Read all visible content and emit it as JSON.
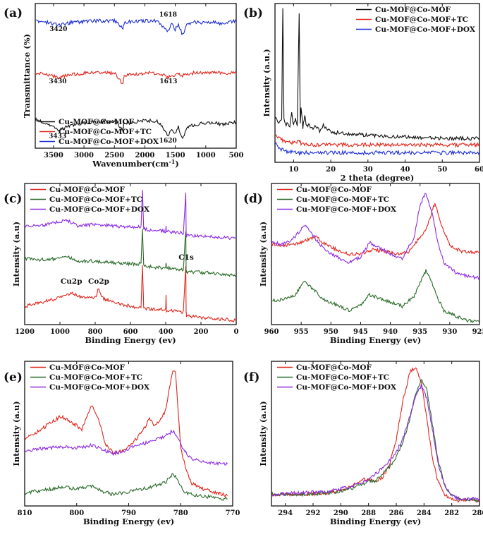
{
  "chart_data": [
    {
      "panel": "(a)",
      "type": "line",
      "xlabel": "Wavenumber(cm-1)",
      "ylabel": "Transmittance (%)",
      "xlim": [
        3800,
        500
      ],
      "xticks": [
        3500,
        3000,
        2500,
        2000,
        1500,
        1000,
        500
      ],
      "legend_loc": "lower-left",
      "series": [
        {
          "name": "Cu-MOF@Co-MOF",
          "color": "#111111",
          "x": [
            3800,
            3600,
            3433,
            3200,
            2900,
            2500,
            2360,
            2340,
            2000,
            1800,
            1620,
            1560,
            1500,
            1450,
            1380,
            1300,
            1200,
            1100,
            1000,
            900,
            800,
            700,
            600,
            500
          ],
          "y": [
            0.2,
            0.17,
            0.12,
            0.16,
            0.18,
            0.19,
            0.13,
            0.17,
            0.19,
            0.19,
            0.09,
            0.14,
            0.1,
            0.15,
            0.06,
            0.14,
            0.16,
            0.17,
            0.17,
            0.18,
            0.17,
            0.16,
            0.18,
            0.18
          ]
        },
        {
          "name": "Cu-MOF@Co-MOF+TC",
          "color": "#e0251b",
          "x": [
            3800,
            3600,
            3430,
            3200,
            2900,
            2500,
            2360,
            2340,
            2000,
            1800,
            1613,
            1560,
            1500,
            1450,
            1380,
            1300,
            1200,
            1000,
            800,
            600,
            500
          ],
          "y": [
            0.52,
            0.51,
            0.49,
            0.51,
            0.52,
            0.52,
            0.44,
            0.5,
            0.52,
            0.52,
            0.49,
            0.51,
            0.5,
            0.51,
            0.5,
            0.51,
            0.52,
            0.52,
            0.52,
            0.52,
            0.52
          ]
        },
        {
          "name": "Cu-MOF@Co-MOF+DOX",
          "color": "#1f2fd6",
          "x": [
            3800,
            3600,
            3420,
            3200,
            2900,
            2500,
            2360,
            2340,
            2000,
            1800,
            1618,
            1560,
            1500,
            1450,
            1380,
            1300,
            1200,
            1000,
            800,
            700,
            600,
            500
          ],
          "y": [
            0.88,
            0.87,
            0.85,
            0.87,
            0.88,
            0.88,
            0.83,
            0.87,
            0.88,
            0.88,
            0.81,
            0.86,
            0.82,
            0.86,
            0.78,
            0.86,
            0.87,
            0.87,
            0.87,
            0.85,
            0.87,
            0.88
          ]
        }
      ],
      "annotations": [
        {
          "text": "3420",
          "x": 3420,
          "y": 0.81
        },
        {
          "text": "1618",
          "x": 1618,
          "y": 0.91
        },
        {
          "text": "3430",
          "x": 3430,
          "y": 0.45
        },
        {
          "text": "1613",
          "x": 1613,
          "y": 0.45
        },
        {
          "text": "3433",
          "x": 3433,
          "y": 0.07
        },
        {
          "text": "1620",
          "x": 1620,
          "y": 0.04
        }
      ]
    },
    {
      "panel": "(b)",
      "type": "line",
      "xlabel": "2 theta (degree)",
      "ylabel": "Intensity (a.u.)",
      "xlim": [
        5,
        60
      ],
      "xticks": [
        10,
        20,
        30,
        40,
        50,
        60
      ],
      "legend_loc": "top-right",
      "series": [
        {
          "name": "Cu-MOF@Co-MOF",
          "color": "#111111",
          "x": [
            5,
            6,
            6.8,
            7.1,
            7.4,
            8,
            9,
            9.5,
            10,
            10.5,
            11,
            11.5,
            11.8,
            12,
            12.5,
            13,
            13.5,
            14,
            15,
            16,
            17,
            18,
            20,
            25,
            30,
            40,
            50,
            60
          ],
          "y": [
            0.28,
            0.25,
            0.27,
            0.96,
            0.27,
            0.24,
            0.23,
            0.31,
            0.23,
            0.28,
            0.24,
            0.94,
            0.24,
            0.34,
            0.22,
            0.3,
            0.22,
            0.24,
            0.21,
            0.23,
            0.2,
            0.23,
            0.19,
            0.18,
            0.17,
            0.16,
            0.15,
            0.15
          ]
        },
        {
          "name": "Cu-MOF@Co-MOF+TC",
          "color": "#e0251b",
          "x": [
            5,
            6,
            8,
            10,
            11.5,
            12,
            15,
            20,
            30,
            40,
            50,
            60
          ],
          "y": [
            0.17,
            0.15,
            0.13,
            0.12,
            0.13,
            0.12,
            0.11,
            0.11,
            0.11,
            0.11,
            0.11,
            0.11
          ]
        },
        {
          "name": "Cu-MOF@Co-MOF+DOX",
          "color": "#1f2fd6",
          "x": [
            5,
            6,
            8,
            10,
            12,
            15,
            20,
            30,
            40,
            50,
            60
          ],
          "y": [
            0.12,
            0.09,
            0.07,
            0.06,
            0.06,
            0.06,
            0.06,
            0.06,
            0.06,
            0.06,
            0.06
          ]
        }
      ]
    },
    {
      "panel": "(c)",
      "type": "line",
      "xlabel": "Binding Energy (ev)",
      "ylabel": "Intensity (a.u)",
      "xlim": [
        1200,
        0
      ],
      "xticks": [
        1200,
        1000,
        800,
        600,
        400,
        200,
        0
      ],
      "legend_loc": "top-left",
      "series": [
        {
          "name": "Cu-MOF@Co-MOF",
          "color": "#e0251b",
          "x": [
            1200,
            1100,
            1000,
            950,
            935,
            900,
            800,
            780,
            760,
            700,
            600,
            540,
            532,
            525,
            500,
            400,
            398,
            396,
            300,
            286,
            284,
            282,
            200,
            100,
            0
          ],
          "y": [
            0.13,
            0.16,
            0.19,
            0.21,
            0.23,
            0.2,
            0.19,
            0.26,
            0.19,
            0.16,
            0.13,
            0.12,
            0.42,
            0.12,
            0.11,
            0.11,
            0.21,
            0.1,
            0.09,
            0.42,
            0.09,
            0.06,
            0.05,
            0.04,
            0.03
          ]
        },
        {
          "name": "Cu-MOF@Co-MOF+TC",
          "color": "#2a6a2a",
          "x": [
            1200,
            1100,
            1000,
            950,
            900,
            800,
            700,
            600,
            540,
            532,
            525,
            500,
            400,
            398,
            396,
            300,
            286,
            284,
            282,
            200,
            100,
            0
          ],
          "y": [
            0.47,
            0.46,
            0.47,
            0.48,
            0.45,
            0.45,
            0.44,
            0.43,
            0.43,
            0.67,
            0.42,
            0.41,
            0.4,
            0.44,
            0.4,
            0.39,
            0.67,
            0.39,
            0.37,
            0.37,
            0.36,
            0.35
          ]
        },
        {
          "name": "Cu-MOF@Co-MOF+DOX",
          "color": "#8c2be2",
          "x": [
            1200,
            1100,
            1000,
            960,
            900,
            800,
            700,
            600,
            540,
            532,
            525,
            500,
            400,
            398,
            396,
            300,
            286,
            284,
            282,
            200,
            100,
            0
          ],
          "y": [
            0.7,
            0.7,
            0.73,
            0.74,
            0.7,
            0.71,
            0.7,
            0.69,
            0.69,
            0.96,
            0.68,
            0.67,
            0.66,
            0.69,
            0.66,
            0.65,
            0.93,
            0.65,
            0.63,
            0.63,
            0.62,
            0.61
          ]
        }
      ],
      "annotations": [
        {
          "text": "Cu2p",
          "x": 935,
          "y": 0.29
        },
        {
          "text": "Co2p",
          "x": 780,
          "y": 0.29
        },
        {
          "text": "C1s",
          "x": 284,
          "y": 0.46
        }
      ]
    },
    {
      "panel": "(d)",
      "type": "line",
      "xlabel": "Binding Energy (ev)",
      "ylabel": "Intensity (a.u)",
      "xlim": [
        960,
        925
      ],
      "xticks": [
        960,
        955,
        950,
        945,
        940,
        935,
        930,
        925
      ],
      "legend_loc": "top-left",
      "series": [
        {
          "name": "Cu-MOF@Co-MOF",
          "color": "#e0251b",
          "x": [
            960,
            958,
            956,
            954,
            952.5,
            951,
            949,
            947,
            945,
            943,
            941,
            939,
            937,
            935,
            934,
            933,
            932.5,
            931.5,
            930,
            928,
            926,
            925
          ],
          "y": [
            0.57,
            0.56,
            0.57,
            0.6,
            0.63,
            0.57,
            0.53,
            0.5,
            0.5,
            0.53,
            0.52,
            0.5,
            0.51,
            0.62,
            0.68,
            0.8,
            0.86,
            0.72,
            0.56,
            0.52,
            0.51,
            0.51
          ]
        },
        {
          "name": "Cu-MOF@Co-MOF+TC",
          "color": "#2a6a2a",
          "x": [
            960,
            958,
            956,
            954.5,
            953,
            951,
            949,
            947,
            945,
            943.5,
            942,
            940,
            938,
            936,
            935,
            934,
            933,
            932,
            931,
            929,
            927,
            925
          ],
          "y": [
            0.17,
            0.18,
            0.21,
            0.31,
            0.25,
            0.17,
            0.14,
            0.1,
            0.14,
            0.21,
            0.19,
            0.16,
            0.13,
            0.2,
            0.3,
            0.38,
            0.3,
            0.19,
            0.1,
            0.06,
            0.03,
            0.02
          ]
        },
        {
          "name": "Cu-MOF@Co-MOF+DOX",
          "color": "#8c2be2",
          "x": [
            960,
            958,
            956,
            954.5,
            953,
            951,
            949,
            947,
            945,
            943.5,
            942,
            940,
            938,
            936,
            935,
            934,
            933,
            932,
            931,
            929,
            927,
            925
          ],
          "y": [
            0.58,
            0.57,
            0.62,
            0.71,
            0.63,
            0.53,
            0.48,
            0.44,
            0.48,
            0.58,
            0.55,
            0.5,
            0.47,
            0.62,
            0.85,
            0.93,
            0.8,
            0.58,
            0.44,
            0.37,
            0.34,
            0.33
          ]
        }
      ]
    },
    {
      "panel": "(e)",
      "type": "line",
      "xlabel": "Binding Energy (ev)",
      "ylabel": "Intensity (a.u)",
      "xlim": [
        810,
        770
      ],
      "xticks": [
        810,
        800,
        790,
        780,
        770
      ],
      "legend_loc": "top-left",
      "series": [
        {
          "name": "Cu-MOF@Co-MOF",
          "color": "#e0251b",
          "x": [
            810,
            808,
            806,
            803,
            801,
            799,
            797,
            796,
            794.5,
            793,
            791,
            789,
            787,
            786,
            785,
            783,
            781.5,
            781,
            780,
            779,
            778,
            776,
            774,
            772,
            771
          ],
          "y": [
            0.47,
            0.5,
            0.55,
            0.62,
            0.58,
            0.53,
            0.7,
            0.62,
            0.43,
            0.37,
            0.38,
            0.44,
            0.54,
            0.6,
            0.55,
            0.65,
            0.94,
            0.92,
            0.4,
            0.26,
            0.16,
            0.12,
            0.1,
            0.08,
            0.07
          ]
        },
        {
          "name": "Cu-MOF@Co-MOF+TC",
          "color": "#2a6a2a",
          "x": [
            810,
            808,
            806,
            803,
            800,
            797,
            795,
            793,
            791,
            789,
            787,
            785,
            783,
            781.5,
            780.5,
            779.5,
            778,
            776,
            774,
            772,
            771
          ],
          "y": [
            0.09,
            0.1,
            0.11,
            0.13,
            0.12,
            0.14,
            0.1,
            0.08,
            0.09,
            0.11,
            0.12,
            0.14,
            0.16,
            0.22,
            0.18,
            0.1,
            0.08,
            0.07,
            0.06,
            0.05,
            0.05
          ]
        },
        {
          "name": "Cu-MOF@Co-MOF+DOX",
          "color": "#8c2be2",
          "x": [
            810,
            808,
            806,
            803,
            800,
            797,
            795,
            793,
            791,
            789,
            787,
            785,
            783,
            781.5,
            780.5,
            779.5,
            778,
            776,
            774,
            772,
            771
          ],
          "y": [
            0.38,
            0.39,
            0.4,
            0.41,
            0.4,
            0.42,
            0.39,
            0.36,
            0.38,
            0.41,
            0.43,
            0.46,
            0.48,
            0.52,
            0.46,
            0.39,
            0.33,
            0.31,
            0.3,
            0.29,
            0.29
          ]
        }
      ]
    },
    {
      "panel": "(f)",
      "type": "line",
      "xlabel": "Binding Energy (ev)",
      "ylabel": "Intensity (a.u)",
      "xlim": [
        295,
        280
      ],
      "xticks": [
        294,
        292,
        290,
        288,
        286,
        284,
        282,
        280
      ],
      "legend_loc": "top-left",
      "series": [
        {
          "name": "Cu-MOF@Co-MOF",
          "color": "#e0251b",
          "x": [
            295,
            293,
            291,
            289.5,
            288.5,
            288,
            287.5,
            287,
            286.5,
            286,
            285.5,
            285,
            284.6,
            284.2,
            283.8,
            283.4,
            283,
            282.5,
            282,
            281.5,
            281,
            280
          ],
          "y": [
            0.08,
            0.08,
            0.09,
            0.12,
            0.18,
            0.19,
            0.16,
            0.2,
            0.28,
            0.46,
            0.74,
            0.93,
            0.96,
            0.86,
            0.6,
            0.33,
            0.17,
            0.08,
            0.05,
            0.04,
            0.04,
            0.04
          ]
        },
        {
          "name": "Cu-MOF@Co-MOF+TC",
          "color": "#2a6a2a",
          "x": [
            295,
            293,
            291,
            289.5,
            288.5,
            288,
            287.5,
            287,
            286.5,
            286,
            285.5,
            285,
            284.6,
            284.2,
            283.8,
            283.4,
            283,
            282.5,
            282,
            281.5,
            281,
            280
          ],
          "y": [
            0.08,
            0.08,
            0.09,
            0.11,
            0.15,
            0.17,
            0.17,
            0.22,
            0.27,
            0.34,
            0.45,
            0.61,
            0.78,
            0.88,
            0.8,
            0.57,
            0.32,
            0.14,
            0.07,
            0.05,
            0.04,
            0.04
          ]
        },
        {
          "name": "Cu-MOF@Co-MOF+DOX",
          "color": "#8c2be2",
          "x": [
            295,
            293,
            291,
            289.5,
            288.5,
            288,
            287.5,
            287,
            286.5,
            286,
            285.5,
            285,
            284.6,
            284.2,
            283.8,
            283.4,
            283,
            282.5,
            282,
            281.5,
            281,
            280
          ],
          "y": [
            0.08,
            0.09,
            0.1,
            0.13,
            0.16,
            0.18,
            0.22,
            0.26,
            0.31,
            0.37,
            0.47,
            0.63,
            0.77,
            0.83,
            0.75,
            0.53,
            0.3,
            0.14,
            0.07,
            0.05,
            0.05,
            0.05
          ]
        }
      ]
    }
  ]
}
